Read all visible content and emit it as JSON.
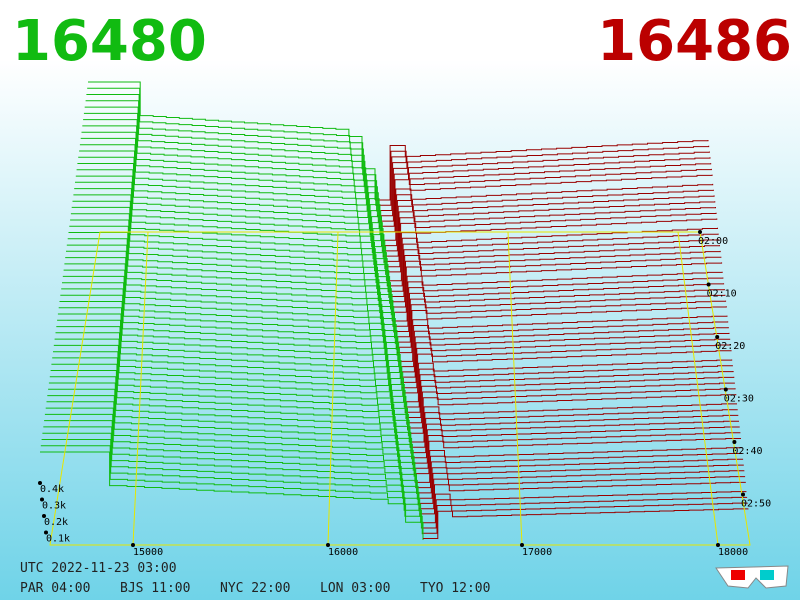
{
  "header": {
    "bid": "16480",
    "ask": "16486"
  },
  "price_axis": [
    "15000",
    "16000",
    "17000",
    "18000"
  ],
  "volume_axis": [
    "0.4k",
    "0.3k",
    "0.2k",
    "0.1k"
  ],
  "time_axis": [
    "02:00",
    "02:10",
    "02:20",
    "02:30",
    "02:40",
    "02:50"
  ],
  "footer": {
    "utc": "UTC 2022-11-23 03:00",
    "zones": [
      "PAR 04:00",
      "BJS 11:00",
      "NYC 22:00",
      "LON 03:00",
      "TYO 12:00"
    ]
  }
}
